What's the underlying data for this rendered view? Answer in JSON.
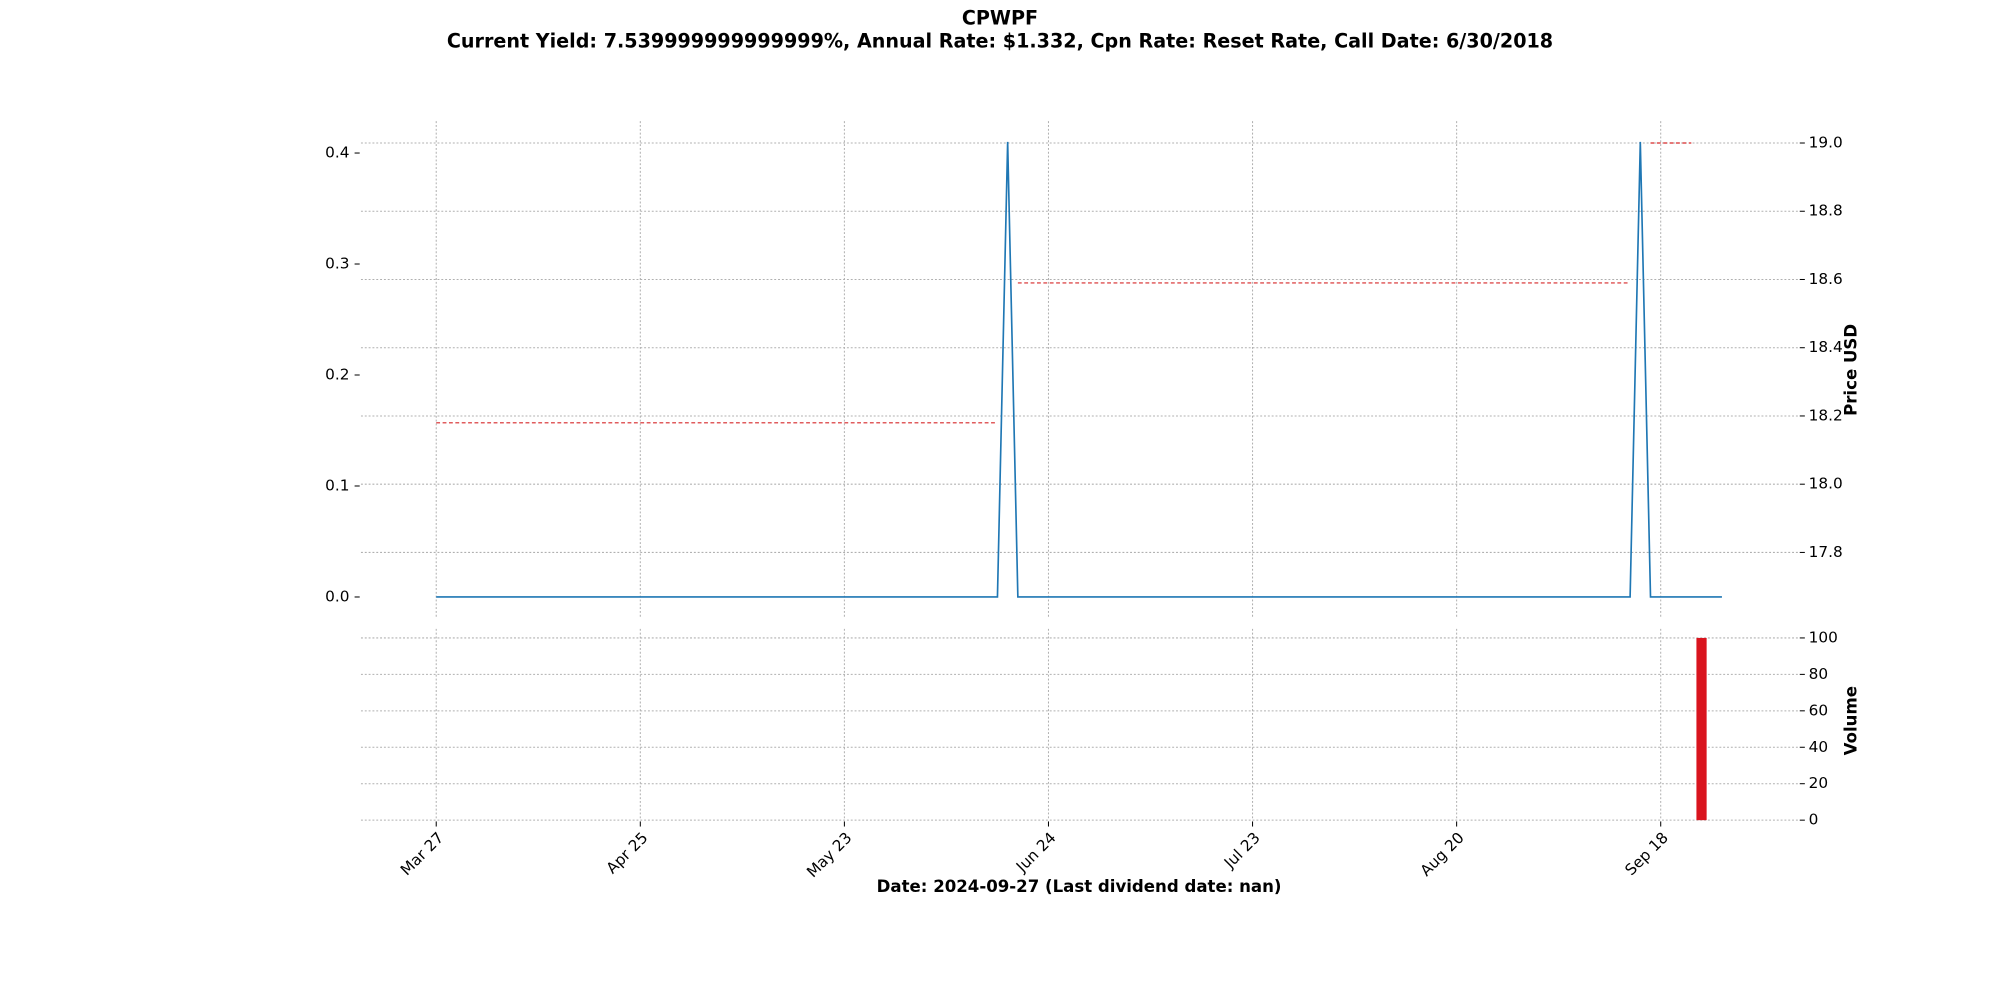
{
  "chart_data": {
    "type": "line",
    "title": "CPWPF",
    "subtitle": "Current Yield: 7.539999999999999%, Annual Rate: $1.332, Cpn Rate: Reset Rate, Call Date: 6/30/2018",
    "xlabel": "Date: 2024-09-27   (Last dividend date: nan)",
    "y2label": "Price USD",
    "grid": true,
    "categories": [
      "Mar 27",
      null,
      null,
      null,
      null,
      null,
      null,
      null,
      null,
      null,
      null,
      null,
      null,
      null,
      null,
      null,
      null,
      null,
      null,
      null,
      "Apr 25",
      null,
      null,
      null,
      null,
      null,
      null,
      null,
      null,
      null,
      null,
      null,
      null,
      null,
      null,
      null,
      null,
      null,
      null,
      null,
      "May 23",
      null,
      null,
      null,
      null,
      null,
      null,
      null,
      null,
      null,
      null,
      null,
      null,
      null,
      null,
      null,
      null,
      null,
      null,
      null,
      "Jun 24",
      null,
      null,
      null,
      null,
      null,
      null,
      null,
      null,
      null,
      null,
      null,
      null,
      null,
      null,
      null,
      null,
      null,
      null,
      null,
      "Jul 23",
      null,
      null,
      null,
      null,
      null,
      null,
      null,
      null,
      null,
      null,
      null,
      null,
      null,
      null,
      null,
      null,
      null,
      null,
      null,
      "Aug 20",
      null,
      null,
      null,
      null,
      null,
      null,
      null,
      null,
      null,
      null,
      null,
      null,
      null,
      null,
      null,
      null,
      null,
      null,
      null,
      "Sep 18",
      null,
      null,
      null,
      null,
      null,
      null
    ],
    "ylim": [
      -0.0195,
      0.4287
    ],
    "yticks": [
      {
        "value": 0,
        "label": "0.0"
      },
      0.1,
      0.2,
      0.3,
      0.4
    ],
    "y2lim": [
      17.606,
      19.064
    ],
    "y2ticks": [
      17.8,
      {
        "value": 18,
        "label": "18.0"
      },
      18.2,
      18.4,
      18.6,
      18.8,
      {
        "value": 19,
        "label": "19.0"
      }
    ],
    "series": [
      {
        "color": "#1f77b4",
        "values": [
          0,
          0,
          0,
          0,
          0,
          0,
          0,
          0,
          0,
          0,
          0,
          0,
          0,
          0,
          0,
          0,
          0,
          0,
          0,
          0,
          0,
          0,
          0,
          0,
          0,
          0,
          0,
          0,
          0,
          0,
          0,
          0,
          0,
          0,
          0,
          0,
          0,
          0,
          0,
          0,
          0,
          0,
          0,
          0,
          0,
          0,
          0,
          0,
          0,
          0,
          0,
          0,
          0,
          0,
          0,
          0,
          0.41,
          0,
          0,
          0,
          0,
          0,
          0,
          0,
          0,
          0,
          0,
          0,
          0,
          0,
          0,
          0,
          0,
          0,
          0,
          0,
          0,
          0,
          0,
          0,
          0,
          0,
          0,
          0,
          0,
          0,
          0,
          0,
          0,
          0,
          0,
          0,
          0,
          0,
          0,
          0,
          0,
          0,
          0,
          0,
          0,
          0,
          0,
          0,
          0,
          0,
          0,
          0,
          0,
          0,
          0,
          0,
          0,
          0,
          0,
          0,
          0,
          0,
          0.41,
          0,
          0,
          0,
          0,
          0,
          0,
          0,
          0
        ]
      },
      {
        "color": "#d62728",
        "axis": "y2",
        "dashed": true,
        "values": [
          18.18,
          18.18,
          18.18,
          18.18,
          18.18,
          18.18,
          18.18,
          18.18,
          18.18,
          18.18,
          18.18,
          18.18,
          18.18,
          18.18,
          18.18,
          18.18,
          18.18,
          18.18,
          18.18,
          18.18,
          18.18,
          18.18,
          18.18,
          18.18,
          18.18,
          18.18,
          18.18,
          18.18,
          18.18,
          18.18,
          18.18,
          18.18,
          18.18,
          18.18,
          18.18,
          18.18,
          18.18,
          18.18,
          18.18,
          18.18,
          18.18,
          18.18,
          18.18,
          18.18,
          18.18,
          18.18,
          18.18,
          18.18,
          18.18,
          18.18,
          18.18,
          18.18,
          18.18,
          18.18,
          18.18,
          18.18,
          null,
          18.59,
          18.59,
          18.59,
          18.59,
          18.59,
          18.59,
          18.59,
          18.59,
          18.59,
          18.59,
          18.59,
          18.59,
          18.59,
          18.59,
          18.59,
          18.59,
          18.59,
          18.59,
          18.59,
          18.59,
          18.59,
          18.59,
          18.59,
          18.59,
          18.59,
          18.59,
          18.59,
          18.59,
          18.59,
          18.59,
          18.59,
          18.59,
          18.59,
          18.59,
          18.59,
          18.59,
          18.59,
          18.59,
          18.59,
          18.59,
          18.59,
          18.59,
          18.59,
          18.59,
          18.59,
          18.59,
          18.59,
          18.59,
          18.59,
          18.59,
          18.59,
          18.59,
          18.59,
          18.59,
          18.59,
          18.59,
          18.59,
          18.59,
          18.59,
          18.59,
          18.59,
          null,
          19,
          19,
          19,
          19,
          19,
          null,
          null,
          null
        ]
      }
    ],
    "volume": {
      "ylabel": "Volume",
      "color": "#d9141e",
      "ylim": [
        0,
        105
      ],
      "yticks": [
        0,
        20,
        40,
        60,
        80,
        100
      ],
      "values": [
        0,
        0,
        0,
        0,
        0,
        0,
        0,
        0,
        0,
        0,
        0,
        0,
        0,
        0,
        0,
        0,
        0,
        0,
        0,
        0,
        0,
        0,
        0,
        0,
        0,
        0,
        0,
        0,
        0,
        0,
        0,
        0,
        0,
        0,
        0,
        0,
        0,
        0,
        0,
        0,
        0,
        0,
        0,
        0,
        0,
        0,
        0,
        0,
        0,
        0,
        0,
        0,
        0,
        0,
        0,
        0,
        0,
        0,
        0,
        0,
        0,
        0,
        0,
        0,
        0,
        0,
        0,
        0,
        0,
        0,
        0,
        0,
        0,
        0,
        0,
        0,
        0,
        0,
        0,
        0,
        0,
        0,
        0,
        0,
        0,
        0,
        0,
        0,
        0,
        0,
        0,
        0,
        0,
        0,
        0,
        0,
        0,
        0,
        0,
        0,
        0,
        0,
        0,
        0,
        0,
        0,
        0,
        0,
        0,
        0,
        0,
        0,
        0,
        0,
        0,
        0,
        0,
        0,
        0,
        0,
        0,
        0,
        0,
        0,
        100,
        0,
        0
      ]
    }
  }
}
